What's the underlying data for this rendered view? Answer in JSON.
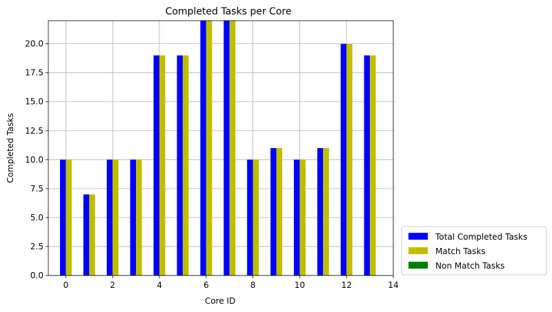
{
  "chart_data": {
    "type": "bar",
    "title": "Completed Tasks per Core",
    "xlabel": "Core ID",
    "ylabel": "Completed Tasks",
    "x": [
      0,
      1,
      2,
      3,
      4,
      5,
      6,
      7,
      8,
      9,
      10,
      11,
      12,
      13
    ],
    "xlim": [
      -0.75,
      14.0
    ],
    "ylim": [
      0,
      22
    ],
    "xticks": [
      0,
      2,
      4,
      6,
      8,
      10,
      12,
      14
    ],
    "yticks": [
      0.0,
      2.5,
      5.0,
      7.5,
      10.0,
      12.5,
      15.0,
      17.5,
      20.0
    ],
    "ytick_labels": [
      "0.0",
      "2.5",
      "5.0",
      "7.5",
      "10.0",
      "12.5",
      "15.0",
      "17.5",
      "20.0"
    ],
    "grid": true,
    "legend_position": "outside-bottom-right",
    "series": [
      {
        "name": "Total Completed Tasks",
        "color": "#0000ff",
        "values": [
          10,
          7,
          10,
          10,
          19,
          19,
          22,
          22,
          10,
          11,
          10,
          11,
          20,
          19
        ]
      },
      {
        "name": "Match Tasks",
        "color": "#bfbf00",
        "values": [
          10,
          7,
          10,
          10,
          19,
          19,
          22,
          22,
          10,
          11,
          10,
          11,
          20,
          19
        ]
      },
      {
        "name": "Non Match Tasks",
        "color": "#008000",
        "values": [
          0,
          0,
          0,
          0,
          0,
          0,
          0,
          0,
          0,
          0,
          0,
          0,
          0,
          0
        ]
      }
    ]
  }
}
